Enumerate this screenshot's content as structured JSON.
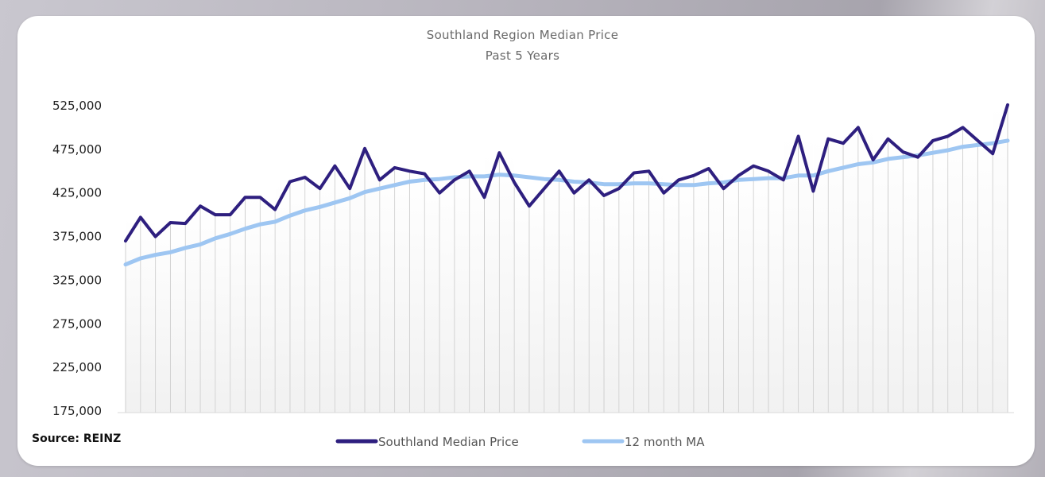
{
  "chart_data": {
    "type": "line",
    "title": "Southland Region Median Price",
    "subtitle": "Past 5 Years",
    "source": "Source: REINZ",
    "ylim": [
      175000,
      525000
    ],
    "yticks": [
      175000,
      225000,
      275000,
      325000,
      375000,
      425000,
      475000,
      525000
    ],
    "ytick_labels": [
      "175,000",
      "225,000",
      "275,000",
      "325,000",
      "375,000",
      "425,000",
      "475,000",
      "525,000"
    ],
    "grid": "vertical",
    "legend_position": "bottom",
    "series": [
      {
        "name": "Southland Median Price",
        "color": "#2e1f7f",
        "values": [
          370000,
          397000,
          375000,
          391000,
          390000,
          410000,
          400000,
          400000,
          420000,
          420000,
          406000,
          438000,
          443000,
          430000,
          456000,
          430000,
          476000,
          440000,
          454000,
          450000,
          447000,
          425000,
          440000,
          450000,
          420000,
          471000,
          437000,
          410000,
          430000,
          450000,
          425000,
          440000,
          422000,
          430000,
          448000,
          450000,
          425000,
          440000,
          445000,
          453000,
          430000,
          445000,
          456000,
          450000,
          440000,
          490000,
          427000,
          487000,
          482000,
          500000,
          463000,
          487000,
          472000,
          466000,
          485000,
          490000,
          500000,
          485000,
          470000,
          526000
        ]
      },
      {
        "name": "12 month MA",
        "color": "#9ec6f2",
        "values": [
          343000,
          350000,
          354000,
          357000,
          362000,
          366000,
          373000,
          378000,
          384000,
          389000,
          392000,
          399000,
          405000,
          409000,
          414000,
          419000,
          426000,
          430000,
          434000,
          438000,
          440000,
          441000,
          443000,
          444000,
          444000,
          446000,
          445000,
          443000,
          441000,
          440000,
          438000,
          437000,
          435000,
          435000,
          436000,
          436000,
          435000,
          434000,
          434000,
          436000,
          437000,
          440000,
          441000,
          442000,
          442000,
          445000,
          445000,
          450000,
          454000,
          458000,
          460000,
          464000,
          466000,
          468000,
          471000,
          474000,
          478000,
          480000,
          482000,
          485000
        ]
      }
    ]
  }
}
